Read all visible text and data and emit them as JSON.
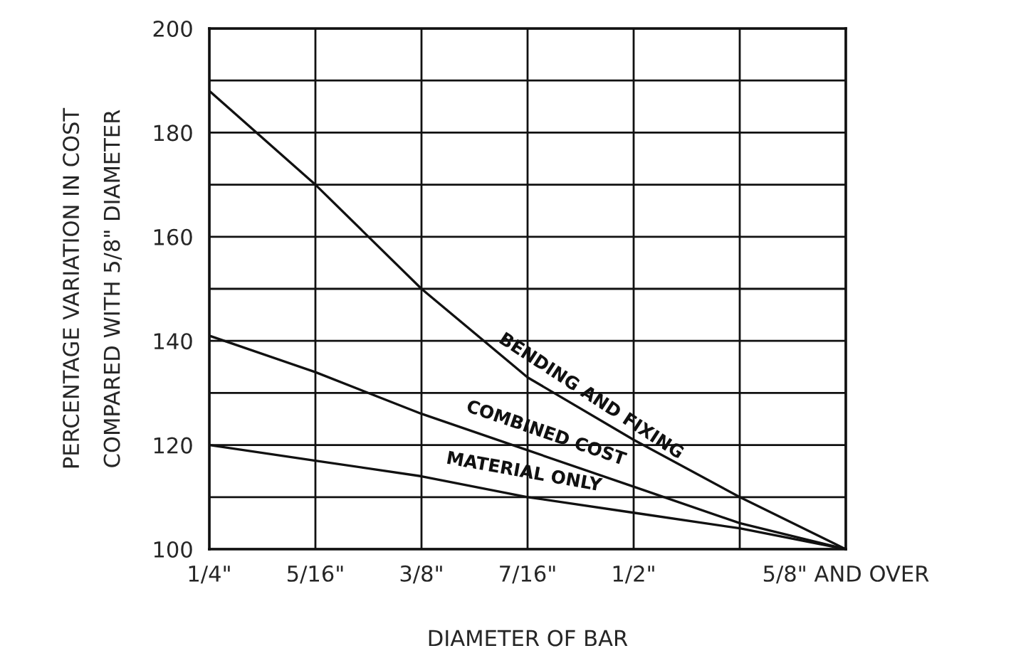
{
  "chart_data": {
    "type": "line",
    "xlabel": "DIAMETER OF BAR",
    "ylabel": "PERCENTAGE VARIATION IN COST\nCOMPARED WITH 5/8\" DIAMETER",
    "categories": [
      "1/4\"",
      "5/16\"",
      "3/8\"",
      "7/16\"",
      "1/2\"",
      null,
      "5/8\" AND OVER"
    ],
    "series": [
      {
        "name": "BENDING AND FIXING",
        "color": "#111111",
        "values": [
          188,
          170,
          150,
          133,
          121,
          110,
          100
        ]
      },
      {
        "name": "COMBINED COST",
        "color": "#111111",
        "values": [
          141,
          134,
          126,
          119,
          112,
          105,
          100
        ]
      },
      {
        "name": "MATERIAL ONLY",
        "color": "#111111",
        "values": [
          120,
          117,
          114,
          110,
          107,
          104,
          100
        ]
      }
    ],
    "ylim": [
      100,
      200
    ],
    "yticks": [
      100,
      {
        "value": 110,
        "label": null
      },
      120,
      {
        "value": 130,
        "label": null
      },
      140,
      {
        "value": 150,
        "label": null
      },
      160,
      {
        "value": 170,
        "label": null
      },
      180,
      {
        "value": 190,
        "label": null
      },
      200
    ],
    "grid": true,
    "marker": "none",
    "line_style": "solid"
  }
}
